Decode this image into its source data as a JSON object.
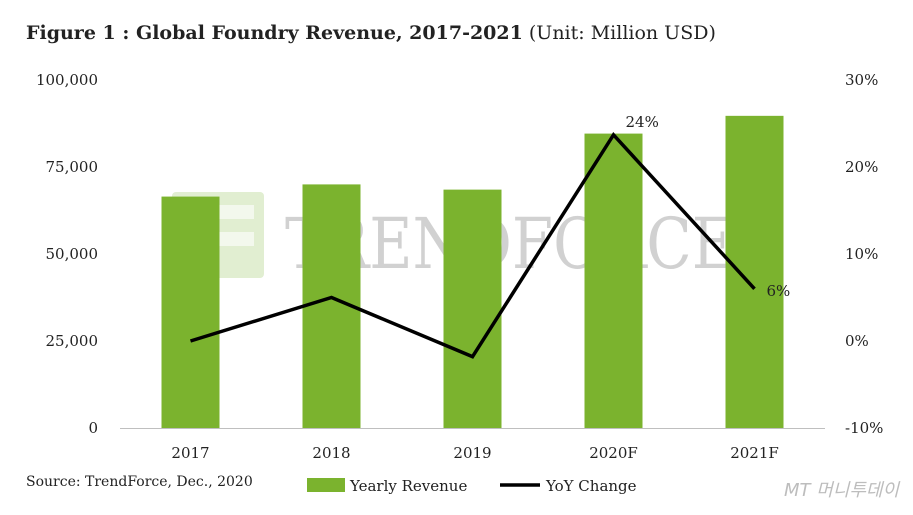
{
  "title": "Figure 1 : Global Foundry Revenue, 2017-2021",
  "unit": "(Unit: Million USD)",
  "source": "Source: TrendForce, Dec., 2020",
  "watermark": "TRENDFORCE",
  "corner_mark": "MT 머니투데이",
  "colors": {
    "bar": "#7bb32e",
    "line": "#000000"
  },
  "chart_data": {
    "type": "bar",
    "categories": [
      "2017",
      "2018",
      "2019",
      "2020F",
      "2021F"
    ],
    "series": [
      {
        "name": "Yearly Revenue",
        "type": "bar",
        "axis": "left",
        "values": [
          66500,
          70000,
          68500,
          84600,
          89700
        ]
      },
      {
        "name": "YoY Change",
        "type": "line",
        "axis": "right",
        "values": [
          0.0,
          5.0,
          -1.8,
          23.7,
          6.0
        ]
      }
    ],
    "left_axis": {
      "min": 0,
      "max": 100000,
      "ticks": [
        "0",
        "25,000",
        "50,000",
        "75,000",
        "100,000"
      ],
      "tick_values": [
        0,
        25000,
        50000,
        75000,
        100000
      ]
    },
    "right_axis": {
      "min": -10,
      "max": 30,
      "ticks": [
        "-10%",
        "0%",
        "10%",
        "20%",
        "30%"
      ],
      "tick_values": [
        -10,
        0,
        10,
        20,
        30
      ]
    },
    "data_labels": [
      {
        "index": 3,
        "text": "24%"
      },
      {
        "index": 4,
        "text": "6%"
      }
    ],
    "legend": [
      "Yearly Revenue",
      "YoY Change"
    ],
    "legend_position": "bottom",
    "grid": false
  }
}
